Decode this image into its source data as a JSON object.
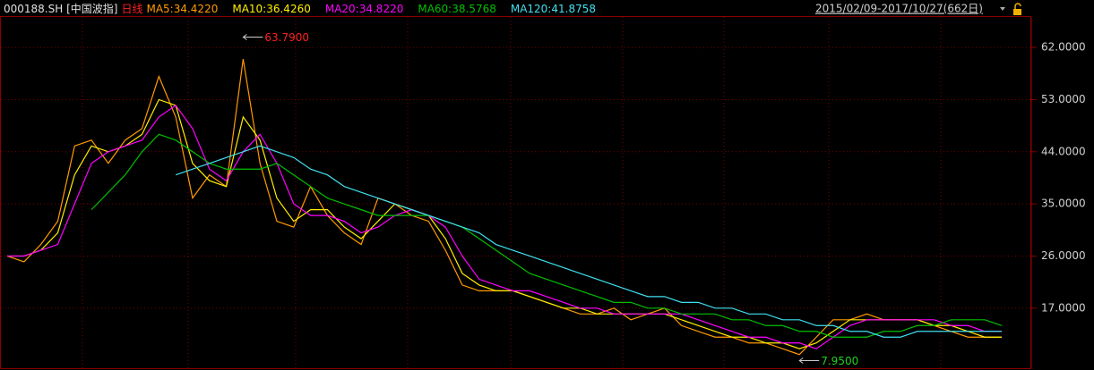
{
  "chart_data": {
    "type": "line",
    "title": "000188.SH [中国波指]",
    "period": "日线",
    "date_range": "2015/02/09-2017/10/27(662日)",
    "categories": [
      null,
      null,
      null,
      null,
      null,
      null,
      null,
      null,
      null,
      null,
      null,
      null,
      null,
      null,
      null,
      null,
      null,
      null,
      null,
      null,
      null,
      null,
      null,
      null,
      null,
      null,
      null,
      null,
      null,
      null,
      null,
      null,
      null,
      null,
      null,
      null,
      null,
      null,
      null,
      null,
      null,
      null,
      null,
      null,
      null,
      null,
      null,
      null,
      null,
      null,
      null,
      null,
      null,
      null,
      null,
      null,
      null,
      null,
      null,
      null
    ],
    "series": [
      {
        "name": "MA5:34.4220",
        "color": "#ff9a00",
        "values": [
          26,
          25,
          28,
          32,
          45,
          46,
          42,
          46,
          48,
          57,
          50,
          36,
          40,
          38,
          60,
          42,
          32,
          31,
          38,
          33,
          30,
          28,
          36,
          35,
          33,
          32,
          27,
          21,
          20,
          20,
          20,
          19,
          18,
          17,
          16,
          16,
          17,
          15,
          16,
          17,
          14,
          13,
          12,
          12,
          11,
          11,
          10,
          9,
          12,
          15,
          15,
          16,
          15,
          15,
          15,
          14,
          13,
          12,
          12,
          12
        ]
      },
      {
        "name": "MA10:36.4260",
        "color": "#ffee00",
        "values": [
          26,
          26,
          27,
          30,
          40,
          45,
          44,
          45,
          47,
          53,
          52,
          42,
          39,
          38,
          50,
          46,
          36,
          32,
          34,
          34,
          31,
          29,
          32,
          35,
          34,
          33,
          29,
          23,
          21,
          20,
          20,
          19,
          18,
          17,
          17,
          16,
          16,
          16,
          16,
          16,
          15,
          14,
          13,
          12,
          12,
          11,
          11,
          10,
          11,
          13,
          15,
          15,
          15,
          15,
          15,
          14,
          14,
          13,
          12,
          12
        ]
      },
      {
        "name": "MA20:34.8220",
        "color": "#ff00ff",
        "values": [
          26,
          26,
          27,
          28,
          35,
          42,
          44,
          45,
          46,
          50,
          52,
          48,
          41,
          39,
          44,
          47,
          42,
          35,
          33,
          33,
          32,
          30,
          31,
          33,
          34,
          33,
          31,
          26,
          22,
          21,
          20,
          20,
          19,
          18,
          17,
          17,
          16,
          16,
          16,
          16,
          16,
          15,
          14,
          13,
          12,
          12,
          11,
          11,
          10,
          12,
          14,
          15,
          15,
          15,
          15,
          15,
          14,
          14,
          13,
          13
        ]
      },
      {
        "name": "MA60:38.5768",
        "color": "#00c000",
        "values": [
          null,
          null,
          null,
          null,
          null,
          34,
          37,
          40,
          44,
          47,
          46,
          44,
          42,
          41,
          41,
          41,
          42,
          40,
          38,
          36,
          35,
          34,
          33,
          33,
          33,
          33,
          32,
          31,
          29,
          27,
          25,
          23,
          22,
          21,
          20,
          19,
          18,
          18,
          17,
          17,
          16,
          16,
          16,
          15,
          15,
          14,
          14,
          13,
          13,
          12,
          12,
          12,
          13,
          13,
          14,
          14,
          15,
          15,
          15,
          14
        ]
      },
      {
        "name": "MA120:41.8758",
        "color": "#40e0f0",
        "values": [
          null,
          null,
          null,
          null,
          null,
          null,
          null,
          null,
          null,
          null,
          40,
          41,
          42,
          43,
          44,
          45,
          44,
          43,
          41,
          40,
          38,
          37,
          36,
          35,
          34,
          33,
          32,
          31,
          30,
          28,
          27,
          26,
          25,
          24,
          23,
          22,
          21,
          20,
          19,
          19,
          18,
          18,
          17,
          17,
          16,
          16,
          15,
          15,
          14,
          14,
          13,
          13,
          12,
          12,
          13,
          13,
          13,
          13,
          13,
          13
        ]
      }
    ],
    "annotations": [
      {
        "label": "63.7900",
        "value": 63.79,
        "color": "#ff2020"
      },
      {
        "label": "7.9500",
        "value": 7.95,
        "color": "#20d020"
      }
    ],
    "ylim": [
      6.64,
      67.26
    ],
    "yticks": [
      {
        "value": 17,
        "label": "17.0000"
      },
      {
        "value": 26,
        "label": "26.0000"
      },
      {
        "value": 35,
        "label": "35.0000"
      },
      {
        "value": 44,
        "label": "44.0000"
      },
      {
        "value": 53,
        "label": "53.0000"
      },
      {
        "value": 62,
        "label": "62.0000"
      }
    ],
    "grid": true
  }
}
